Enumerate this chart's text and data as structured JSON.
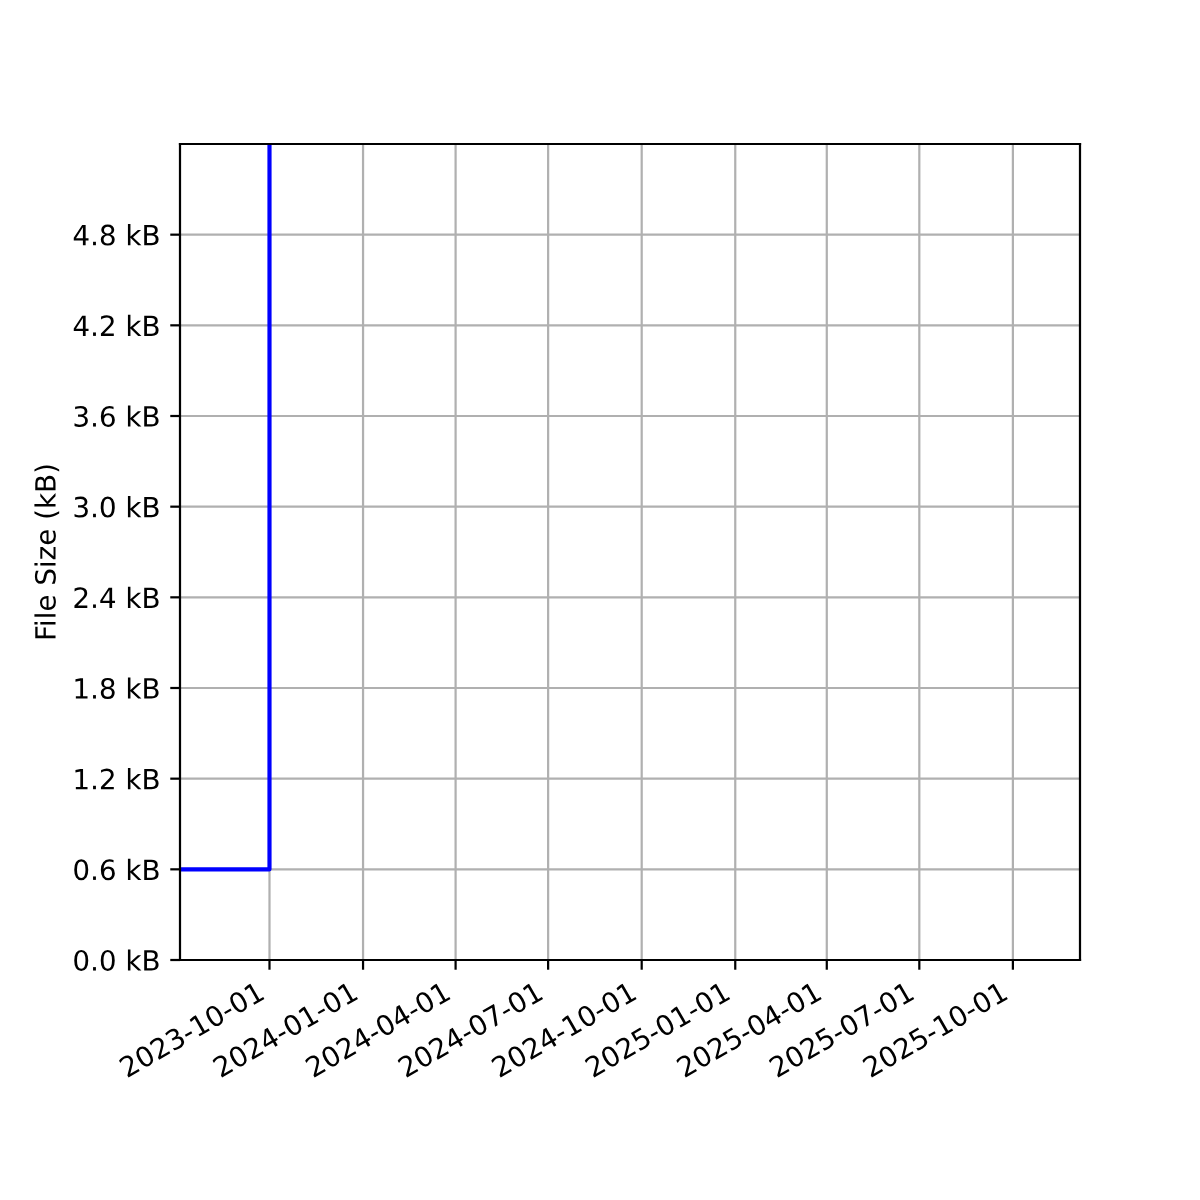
{
  "chart_data": {
    "type": "line",
    "ylabel": "File Size (kB)",
    "x": [
      "2023-07-05",
      "2023-10-01",
      "2023-10-01"
    ],
    "series": [
      {
        "color": "#0000ff",
        "values": [
          0.6,
          0.6,
          5.4
        ]
      }
    ],
    "xlim": [
      "2023-07-05",
      "2025-12-06"
    ],
    "xticks": [
      "2023-10-01",
      "2024-01-01",
      "2024-04-01",
      "2024-07-01",
      "2024-10-01",
      "2025-01-01",
      "2025-04-01",
      "2025-07-01",
      "2025-10-01"
    ],
    "ylim": [
      0,
      5.4
    ],
    "yticks": [
      {
        "value": 0,
        "label": "0.0 kB"
      },
      {
        "value": 0.6,
        "label": "0.6 kB"
      },
      {
        "value": 1.2,
        "label": "1.2 kB"
      },
      {
        "value": 1.8,
        "label": "1.8 kB"
      },
      {
        "value": 2.4,
        "label": "2.4 kB"
      },
      {
        "value": 3.0,
        "label": "3.0 kB"
      },
      {
        "value": 3.6,
        "label": "3.6 kB"
      },
      {
        "value": 4.2,
        "label": "4.2 kB"
      },
      {
        "value": 4.8,
        "label": "4.8 kB"
      }
    ],
    "grid": true,
    "marker": "none",
    "line_style": "solid",
    "legend": false
  }
}
